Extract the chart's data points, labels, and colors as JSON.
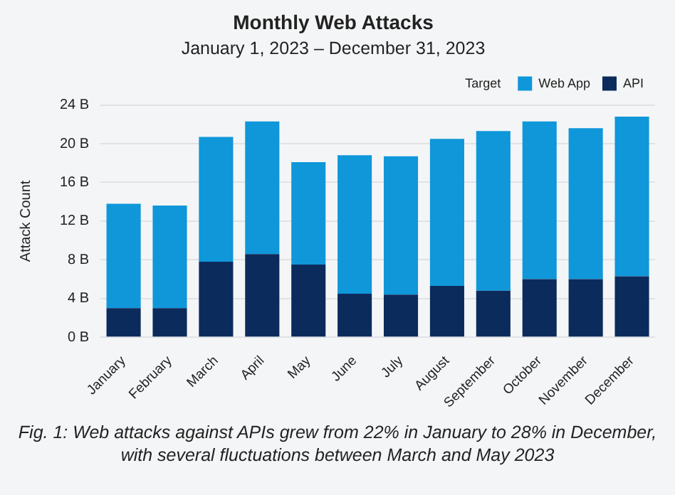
{
  "chart_data": {
    "type": "bar",
    "title": "Monthly Web Attacks",
    "subtitle": "January 1, 2023 – December 31, 2023",
    "ylabel": "Attack Count",
    "legend_title": "Target",
    "legend": "top right",
    "stacked": true,
    "grid": "y",
    "categories": [
      "January",
      "February",
      "March",
      "April",
      "May",
      "June",
      "July",
      "August",
      "September",
      "October",
      "November",
      "December"
    ],
    "series": [
      {
        "name": "API",
        "color": "#0b2b5c",
        "values": [
          3.0,
          3.0,
          7.8,
          8.6,
          7.5,
          4.5,
          4.4,
          5.3,
          4.8,
          6.0,
          6.0,
          6.3
        ]
      },
      {
        "name": "Web App",
        "color": "#0f97da",
        "values": [
          10.8,
          10.6,
          12.9,
          13.7,
          10.6,
          14.3,
          14.3,
          15.2,
          16.5,
          16.3,
          15.6,
          16.5
        ]
      }
    ],
    "ylim": [
      0,
      24
    ],
    "yticks": [
      {
        "value": 0,
        "label": "0 B"
      },
      {
        "value": 4,
        "label": "4 B"
      },
      {
        "value": 8,
        "label": "8 B"
      },
      {
        "value": 12,
        "label": "12 B"
      },
      {
        "value": 16,
        "label": "16 B"
      },
      {
        "value": 20,
        "label": "20 B"
      },
      {
        "value": 24,
        "label": "24 B"
      }
    ],
    "annotations": [
      "Fig. 1: Web attacks against APIs grew from 22% in January to 28% in December, with several fluctuations between March and May 2023"
    ]
  }
}
